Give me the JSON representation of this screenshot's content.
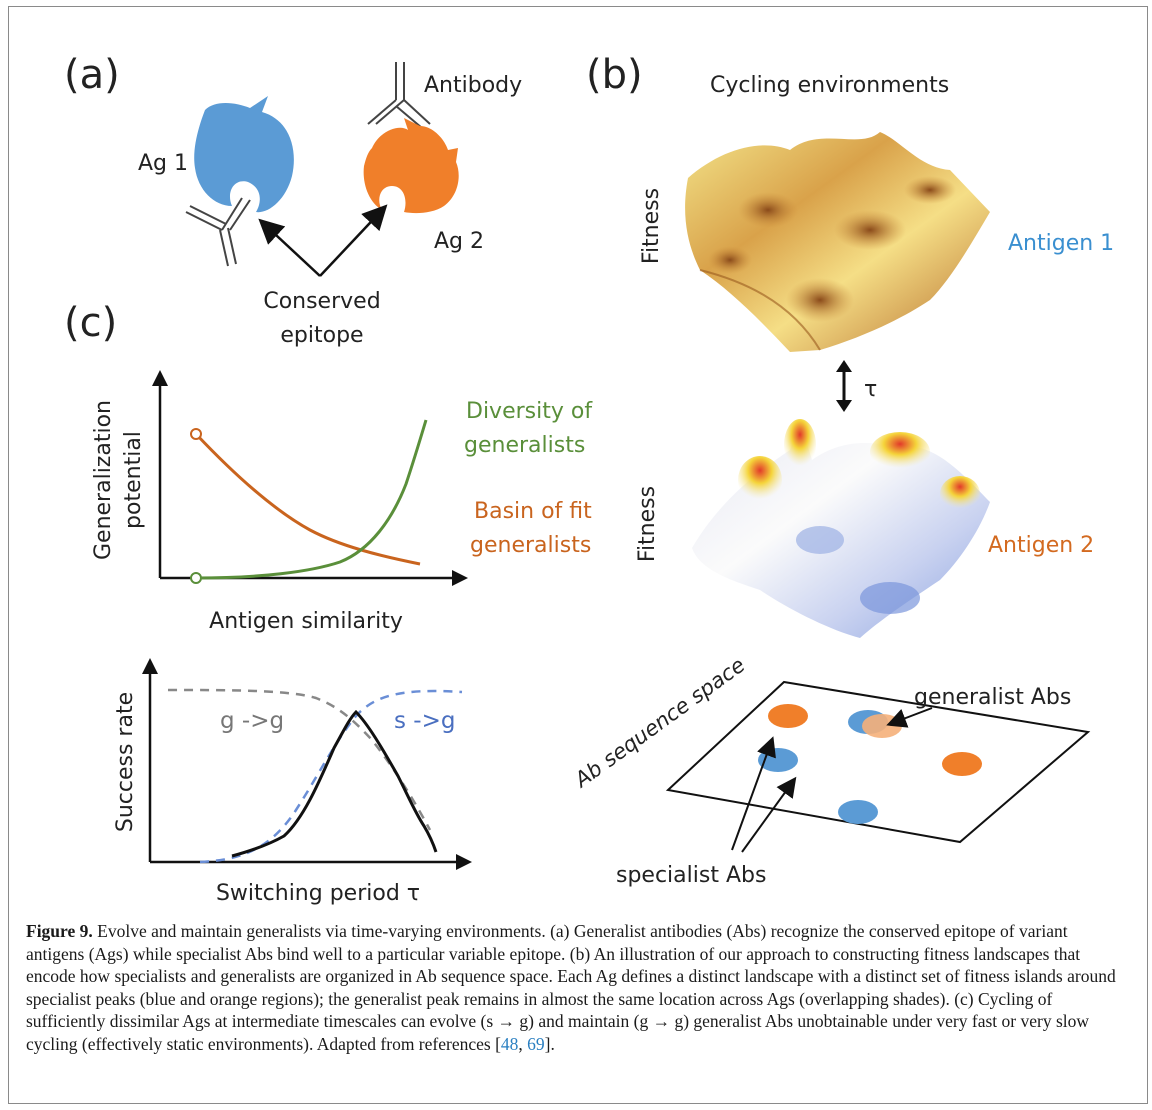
{
  "panels": {
    "a": {
      "label": "(a)",
      "antibody": "Antibody",
      "ag1": "Ag 1",
      "ag2": "Ag 2",
      "conserved_line1": "Conserved",
      "conserved_line2": "epitope",
      "colors": {
        "ag1": "#5b9bd5",
        "ag2": "#f07f2a"
      }
    },
    "b": {
      "label": "(b)",
      "title": "Cycling environments",
      "fitness_top": "Fitness",
      "antigen1": "Antigen 1",
      "tau": "τ",
      "fitness_bottom": "Fitness",
      "antigen2": "Antigen 2",
      "seq_space": "Ab sequence space",
      "generalist": "generalist Abs",
      "specialist": "specialist Abs",
      "colors": {
        "antigen1_text": "#3a8fd0",
        "antigen2_text": "#d36a20",
        "blue_spot": "#5b9bd5",
        "orange_spot": "#f07f2a"
      }
    },
    "c": {
      "label": "(c)",
      "top_ylabel_line1": "Generalization",
      "top_ylabel_line2": "potential",
      "top_xlabel": "Antigen similarity",
      "diversity_line1": "Diversity of",
      "diversity_line2": "generalists",
      "basin_line1": "Basin of fit",
      "basin_line2": "generalists",
      "bottom_ylabel": "Success rate",
      "bottom_xlabel": "Switching period τ",
      "g_to_g": "g ->g",
      "s_to_g": "s ->g",
      "colors": {
        "diversity": "#5a8f3a",
        "basin": "#c9641e",
        "gg": "#888888",
        "sg": "#6a8ed6"
      }
    }
  },
  "caption": {
    "figure_label": "Figure 9.",
    "text_1": " Evolve and maintain generalists via time-varying environments. (a) Generalist antibodies (Abs) recognize the conserved epitope of variant antigens (Ags) while specialist Abs bind well to a particular variable epitope. (b) An illustration of our approach to constructing fitness landscapes that encode how specialists and generalists are organized in Ab sequence space. Each Ag defines a distinct landscape with a distinct set of fitness islands around specialist peaks (blue and orange regions); the generalist peak remains in almost the same location across Ags (overlapping shades). (c) Cycling of sufficiently dissimilar Ags at intermediate timescales can evolve (s → g) and maintain (g → g) generalist Abs unobtainable under very fast or very slow cycling (effectively static environments). Adapted from references [",
    "ref_1": "48",
    "text_2": ", ",
    "ref_2": "69",
    "text_3": "]."
  }
}
